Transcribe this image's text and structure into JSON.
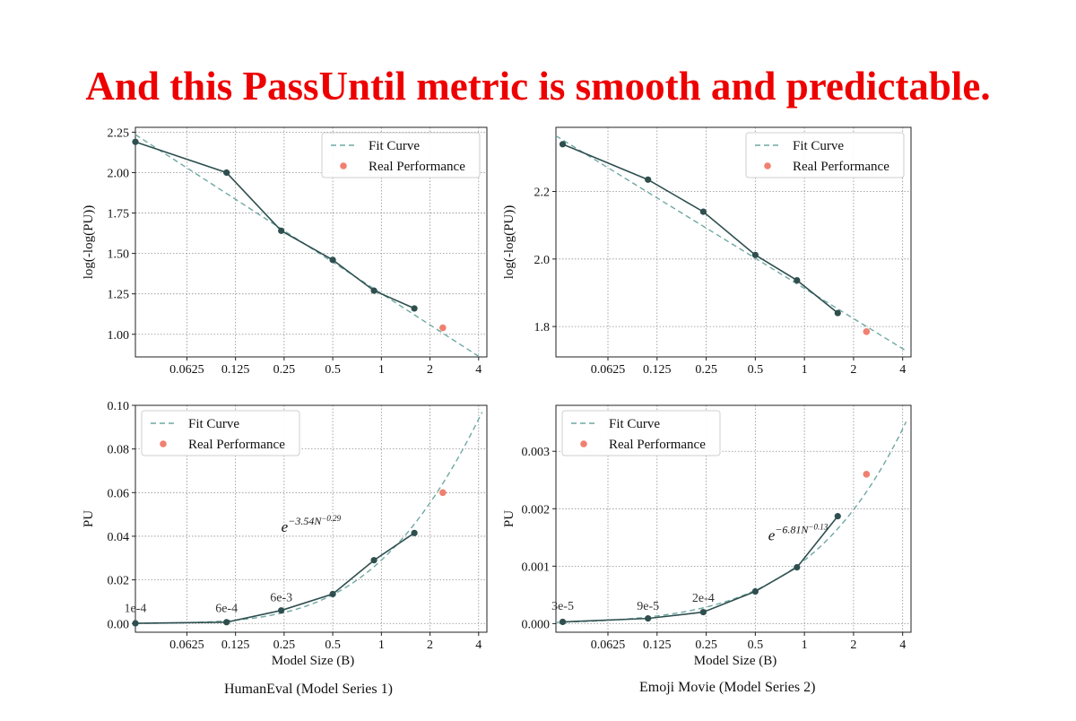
{
  "headline": {
    "text": "And this PassUntil metric is smooth and predictable.",
    "color": "#ee0000"
  },
  "colors": {
    "fit": "#6fa8a3",
    "real": "#f08070",
    "line": "#2f4f4f",
    "grid": "#8f8f8f"
  },
  "legend": {
    "fit": "Fit Curve",
    "real": "Real Performance"
  },
  "captions": {
    "left": "HumanEval (Model Series 1)",
    "right": "Emoji Movie (Model Series 2)"
  },
  "chart_data": [
    {
      "id": "humaneval-log",
      "type": "line",
      "xscale": "log2",
      "xlim": [
        0.03,
        4.5
      ],
      "xticks": [
        0.0625,
        0.125,
        0.25,
        0.5,
        1,
        2,
        4
      ],
      "xticklabels": [
        "0.0625",
        "0.125",
        "0.25",
        "0.5",
        "1",
        "2",
        "4"
      ],
      "xlabel": "",
      "ylabel": "log(-log(PU))",
      "ylim": [
        0.86,
        2.28
      ],
      "yticks": [
        1.0,
        1.25,
        1.5,
        1.75,
        2.0,
        2.25
      ],
      "yticklabels": [
        "1.00",
        "1.25",
        "1.50",
        "1.75",
        "2.00",
        "2.25"
      ],
      "legend_position": "top-right",
      "series": [
        {
          "name": "",
          "kind": "measured",
          "x": [
            0.03,
            0.11,
            0.24,
            0.5,
            0.9,
            1.6
          ],
          "y": [
            2.19,
            2.0,
            1.64,
            1.46,
            1.27,
            1.16
          ]
        },
        {
          "name": "Fit Curve",
          "kind": "fit",
          "x": [
            0.03,
            4.2
          ],
          "y": [
            2.235,
            0.85
          ]
        },
        {
          "name": "Real Performance",
          "kind": "real",
          "x": [
            2.4
          ],
          "y": [
            1.04
          ]
        }
      ]
    },
    {
      "id": "emoji-log",
      "type": "line",
      "xscale": "log2",
      "xlim": [
        0.03,
        4.5
      ],
      "xticks": [
        0.0625,
        0.125,
        0.25,
        0.5,
        1,
        2,
        4
      ],
      "xticklabels": [
        "0.0625",
        "0.125",
        "0.25",
        "0.5",
        "1",
        "2",
        "4"
      ],
      "xlabel": "",
      "ylabel": "log(-log(PU))",
      "ylim": [
        1.71,
        2.39
      ],
      "yticks": [
        1.8,
        2.0,
        2.2
      ],
      "yticklabels": [
        "1.8",
        "2.0",
        "2.2"
      ],
      "legend_position": "top-right",
      "series": [
        {
          "name": "",
          "kind": "measured",
          "x": [
            0.033,
            0.11,
            0.24,
            0.5,
            0.9,
            1.6
          ],
          "y": [
            2.34,
            2.235,
            2.14,
            2.012,
            1.937,
            1.84
          ]
        },
        {
          "name": "Fit Curve",
          "kind": "fit",
          "x": [
            0.03,
            4.2
          ],
          "y": [
            2.365,
            1.728
          ]
        },
        {
          "name": "Real Performance",
          "kind": "real",
          "x": [
            2.4
          ],
          "y": [
            1.785
          ]
        }
      ]
    },
    {
      "id": "humaneval-pu",
      "type": "line",
      "xscale": "log2",
      "xlim": [
        0.03,
        4.5
      ],
      "xticks": [
        0.0625,
        0.125,
        0.25,
        0.5,
        1,
        2,
        4
      ],
      "xticklabels": [
        "0.0625",
        "0.125",
        "0.25",
        "0.5",
        "1",
        "2",
        "4"
      ],
      "xlabel": "Model Size (B)",
      "ylabel": "PU",
      "ylim": [
        -0.004,
        0.1
      ],
      "yticks": [
        0.0,
        0.02,
        0.04,
        0.06,
        0.08,
        0.1
      ],
      "yticklabels": [
        "0.00",
        "0.02",
        "0.04",
        "0.06",
        "0.08",
        "0.10"
      ],
      "legend_position": "top-left",
      "formula": {
        "base": "e",
        "exponent": "−3.54N",
        "power": "−0.29",
        "x": 0.24,
        "y": 0.042
      },
      "point_labels": [
        {
          "text": "1e-4",
          "x": 0.03,
          "y": 0.0052
        },
        {
          "text": "6e-4",
          "x": 0.11,
          "y": 0.0052
        },
        {
          "text": "6e-3",
          "x": 0.24,
          "y": 0.0102
        }
      ],
      "series": [
        {
          "name": "",
          "kind": "measured",
          "x": [
            0.03,
            0.11,
            0.24,
            0.5,
            0.9,
            1.6
          ],
          "y": [
            0.0001,
            0.0006,
            0.006,
            0.0135,
            0.029,
            0.0415
          ]
        },
        {
          "name": "Fit Curve",
          "kind": "fit",
          "formula_a": 3.54,
          "formula_b": 0.29,
          "x_from": 0.03,
          "x_to": 4.2
        },
        {
          "name": "Real Performance",
          "kind": "real",
          "x": [
            2.4
          ],
          "y": [
            0.06
          ]
        }
      ]
    },
    {
      "id": "emoji-pu",
      "type": "line",
      "xscale": "log2",
      "xlim": [
        0.03,
        4.5
      ],
      "xticks": [
        0.0625,
        0.125,
        0.25,
        0.5,
        1,
        2,
        4
      ],
      "xticklabels": [
        "0.0625",
        "0.125",
        "0.25",
        "0.5",
        "1",
        "2",
        "4"
      ],
      "xlabel": "Model Size (B)",
      "ylabel": "PU",
      "ylim": [
        -0.00015,
        0.0038
      ],
      "yticks": [
        0.0,
        0.001,
        0.002,
        0.003
      ],
      "yticklabels": [
        "0.000",
        "0.001",
        "0.002",
        "0.003"
      ],
      "legend_position": "top-left",
      "formula": {
        "base": "e",
        "exponent": "−6.81N",
        "power": "−0.13",
        "x": 0.6,
        "y": 0.00145
      },
      "point_labels": [
        {
          "text": "3e-5",
          "x": 0.033,
          "y": 0.00024
        },
        {
          "text": "9e-5",
          "x": 0.11,
          "y": 0.00024
        },
        {
          "text": "2e-4",
          "x": 0.24,
          "y": 0.00038
        }
      ],
      "series": [
        {
          "name": "",
          "kind": "measured",
          "x": [
            0.033,
            0.11,
            0.24,
            0.5,
            0.9,
            1.6
          ],
          "y": [
            3e-05,
            9e-05,
            0.0002,
            0.00056,
            0.00098,
            0.00187
          ]
        },
        {
          "name": "Fit Curve",
          "kind": "fit",
          "formula_a": 6.81,
          "formula_b": 0.13,
          "x_from": 0.03,
          "x_to": 4.2
        },
        {
          "name": "Real Performance",
          "kind": "real",
          "x": [
            2.4
          ],
          "y": [
            0.0026
          ]
        }
      ]
    }
  ]
}
